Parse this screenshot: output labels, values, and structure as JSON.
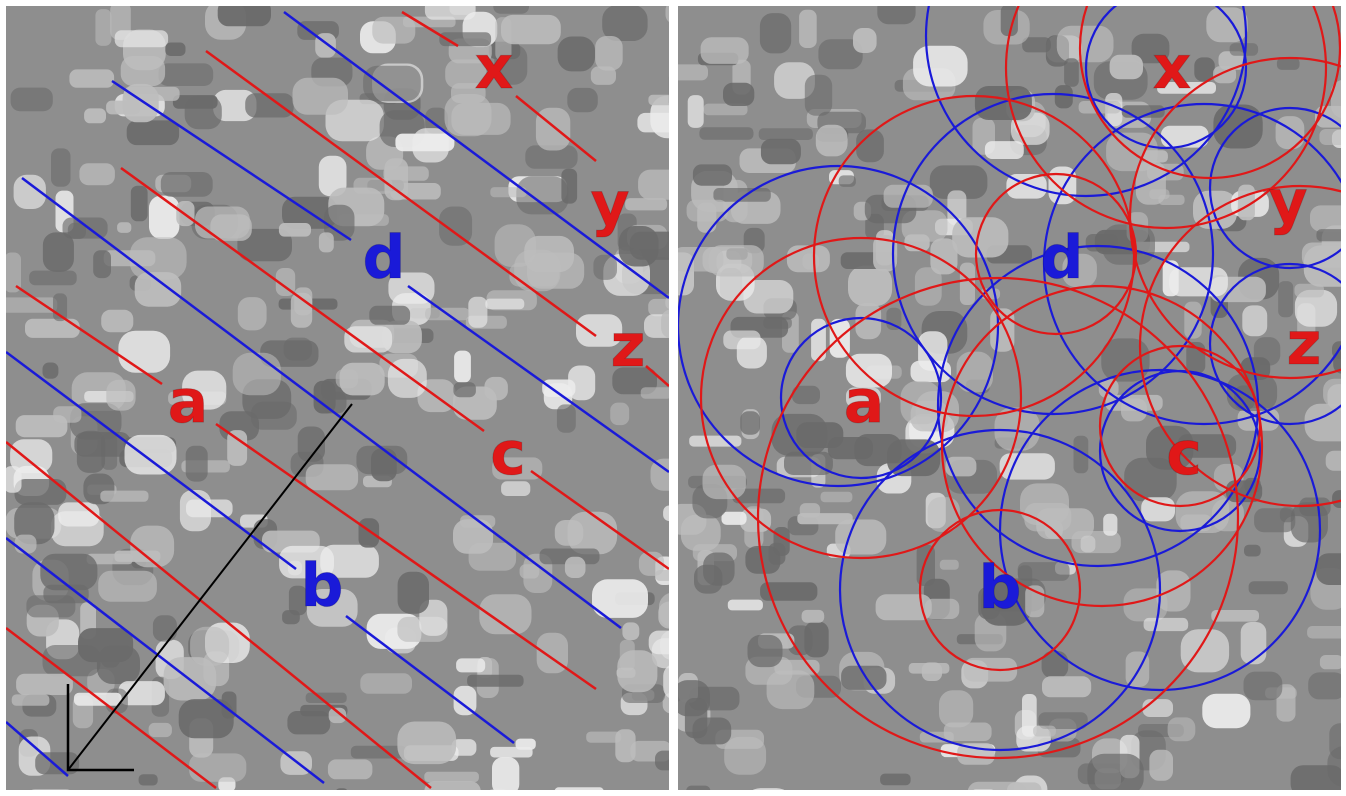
{
  "colors": {
    "red": "#e01818",
    "blue": "#1a1ad8",
    "black": "#000000",
    "tex_dark": "#6a6a6a",
    "tex_mid": "#8e8e8e",
    "tex_light": "#bdbdbd",
    "tex_white": "#ececec"
  },
  "left_panel": {
    "labels": {
      "x": {
        "text": "x",
        "color": "red"
      },
      "y": {
        "text": "y",
        "color": "red"
      },
      "z": {
        "text": "z",
        "color": "red"
      },
      "d": {
        "text": "d",
        "color": "blue"
      },
      "a": {
        "text": "a",
        "color": "red"
      },
      "c": {
        "text": "c",
        "color": "red"
      },
      "b": {
        "text": "b",
        "color": "blue"
      }
    }
  },
  "right_panel": {
    "labels": {
      "x": {
        "text": "x",
        "color": "red"
      },
      "y": {
        "text": "y",
        "color": "red"
      },
      "d": {
        "text": "d",
        "color": "blue"
      },
      "z": {
        "text": "z",
        "color": "red"
      },
      "a": {
        "text": "a",
        "color": "red"
      },
      "c": {
        "text": "c",
        "color": "red"
      },
      "b": {
        "text": "b",
        "color": "blue"
      }
    }
  }
}
